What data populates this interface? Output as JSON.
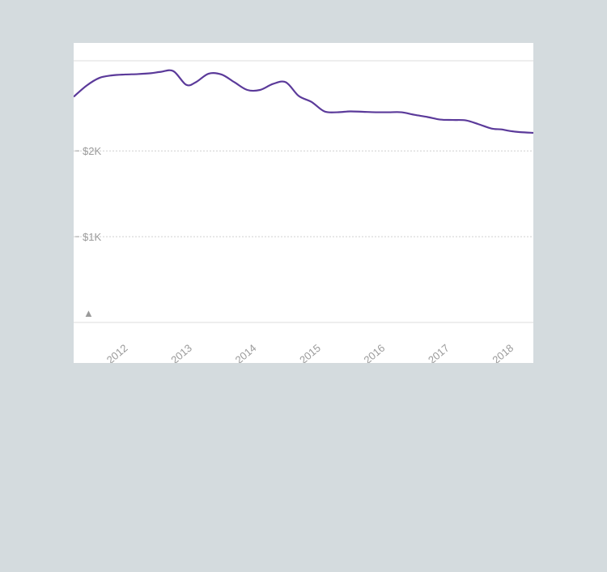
{
  "chart_data": {
    "type": "line",
    "title": "",
    "xlabel": "",
    "ylabel": "",
    "x_ticks": [
      "2012",
      "2013",
      "2014",
      "2015",
      "2016",
      "2017",
      "2018"
    ],
    "y_ticks": [
      {
        "value": 1000,
        "label": "$1K"
      },
      {
        "value": 2000,
        "label": "$2K"
      }
    ],
    "y_min_marker": "▲",
    "xlim": [
      2011.2,
      2018.35
    ],
    "ylim": [
      0,
      3050
    ],
    "grid": true,
    "series": [
      {
        "color": "#5b3a9a",
        "points": [
          [
            2011.2,
            2630
          ],
          [
            2011.4,
            2760
          ],
          [
            2011.6,
            2850
          ],
          [
            2011.8,
            2880
          ],
          [
            2012.0,
            2890
          ],
          [
            2012.2,
            2895
          ],
          [
            2012.4,
            2905
          ],
          [
            2012.55,
            2920
          ],
          [
            2012.75,
            2930
          ],
          [
            2012.95,
            2770
          ],
          [
            2013.1,
            2800
          ],
          [
            2013.3,
            2900
          ],
          [
            2013.5,
            2890
          ],
          [
            2013.7,
            2800
          ],
          [
            2013.9,
            2710
          ],
          [
            2014.1,
            2710
          ],
          [
            2014.3,
            2780
          ],
          [
            2014.5,
            2800
          ],
          [
            2014.7,
            2640
          ],
          [
            2014.9,
            2570
          ],
          [
            2015.1,
            2460
          ],
          [
            2015.3,
            2450
          ],
          [
            2015.5,
            2460
          ],
          [
            2015.7,
            2455
          ],
          [
            2015.9,
            2450
          ],
          [
            2016.1,
            2450
          ],
          [
            2016.3,
            2450
          ],
          [
            2016.5,
            2420
          ],
          [
            2016.7,
            2395
          ],
          [
            2016.9,
            2365
          ],
          [
            2017.1,
            2360
          ],
          [
            2017.3,
            2355
          ],
          [
            2017.5,
            2310
          ],
          [
            2017.7,
            2260
          ],
          [
            2017.85,
            2250
          ],
          [
            2018.0,
            2230
          ],
          [
            2018.15,
            2218
          ],
          [
            2018.35,
            2210
          ]
        ]
      }
    ]
  }
}
